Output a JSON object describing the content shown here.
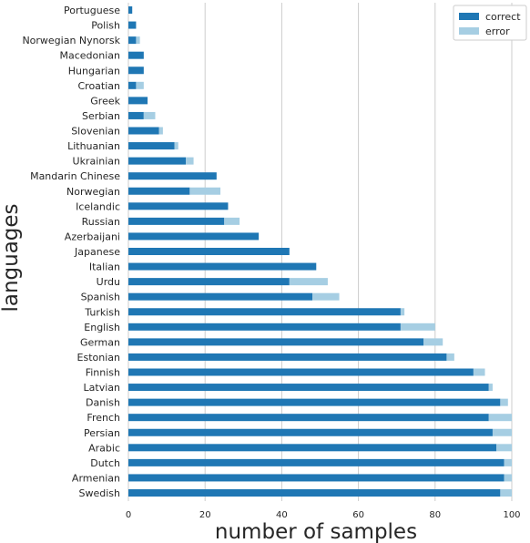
{
  "chart_data": {
    "type": "bar",
    "orientation": "horizontal",
    "stacked": true,
    "xlabel": "number of samples",
    "ylabel": "languages",
    "xlim": [
      0,
      100
    ],
    "xticks": [
      0,
      20,
      40,
      60,
      80,
      100
    ],
    "grid": "vertical",
    "legend_position": "top-right",
    "categories": [
      "Portuguese",
      "Polish",
      "Norwegian Nynorsk",
      "Macedonian",
      "Hungarian",
      "Croatian",
      "Greek",
      "Serbian",
      "Slovenian",
      "Lithuanian",
      "Ukrainian",
      "Mandarin Chinese",
      "Norwegian",
      "Icelandic",
      "Russian",
      "Azerbaijani",
      "Japanese",
      "Italian",
      "Urdu",
      "Spanish",
      "Turkish",
      "English",
      "German",
      "Estonian",
      "Finnish",
      "Latvian",
      "Danish",
      "French",
      "Persian",
      "Arabic",
      "Dutch",
      "Armenian",
      "Swedish"
    ],
    "series": [
      {
        "name": "correct",
        "color": "#1f77b4",
        "values": [
          1,
          2,
          2,
          4,
          4,
          2,
          5,
          4,
          8,
          12,
          15,
          23,
          16,
          26,
          25,
          34,
          42,
          49,
          42,
          48,
          71,
          71,
          77,
          83,
          90,
          94,
          97,
          94,
          95,
          96,
          98,
          98,
          97
        ]
      },
      {
        "name": "error",
        "color": "#a6cee3",
        "values": [
          0,
          0,
          1,
          0,
          0,
          2,
          0,
          3,
          1,
          1,
          2,
          0,
          8,
          0,
          4,
          0,
          0,
          0,
          10,
          7,
          1,
          9,
          5,
          2,
          3,
          1,
          2,
          6,
          5,
          4,
          2,
          2,
          3
        ]
      }
    ]
  }
}
